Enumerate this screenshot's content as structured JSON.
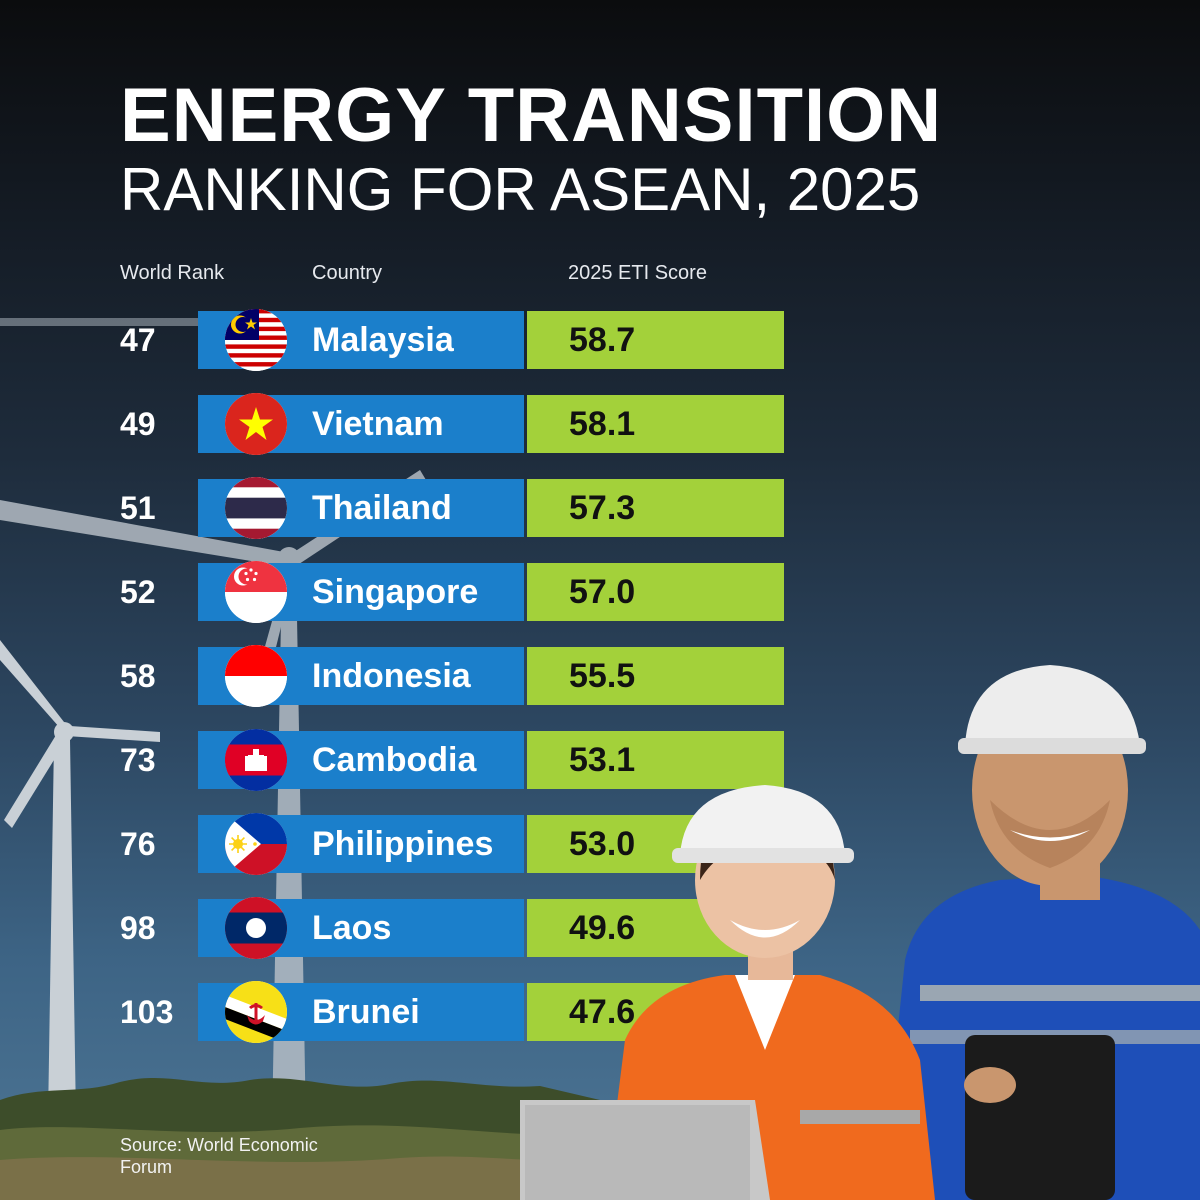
{
  "title": {
    "line1": "ENERGY TRANSITION",
    "line2": "RANKING FOR ASEAN, 2025"
  },
  "columns": {
    "rank": "World Rank",
    "country": "Country",
    "score": "2025 ETI Score"
  },
  "source": "Source: World Economic Forum",
  "colors": {
    "country_bar": "#1b7fcb",
    "score_bar": "#a3d13a"
  },
  "chart_data": {
    "type": "table",
    "title": "ENERGY TRANSITION RANKING FOR ASEAN, 2025",
    "columns": [
      "World Rank",
      "Country",
      "2025 ETI Score"
    ],
    "rows": [
      {
        "rank": "47",
        "country": "Malaysia",
        "score": "58.7",
        "flag": "malaysia-flag-icon"
      },
      {
        "rank": "49",
        "country": "Vietnam",
        "score": "58.1",
        "flag": "vietnam-flag-icon"
      },
      {
        "rank": "51",
        "country": "Thailand",
        "score": "57.3",
        "flag": "thailand-flag-icon"
      },
      {
        "rank": "52",
        "country": "Singapore",
        "score": "57.0",
        "flag": "singapore-flag-icon"
      },
      {
        "rank": "58",
        "country": "Indonesia",
        "score": "55.5",
        "flag": "indonesia-flag-icon"
      },
      {
        "rank": "73",
        "country": "Cambodia",
        "score": "53.1",
        "flag": "cambodia-flag-icon"
      },
      {
        "rank": "76",
        "country": "Philippines",
        "score": "53.0",
        "flag": "philippines-flag-icon"
      },
      {
        "rank": "98",
        "country": "Laos",
        "score": "49.6",
        "flag": "laos-flag-icon"
      },
      {
        "rank": "103",
        "country": "Brunei",
        "score": "47.6",
        "flag": "brunei-flag-icon"
      }
    ]
  }
}
